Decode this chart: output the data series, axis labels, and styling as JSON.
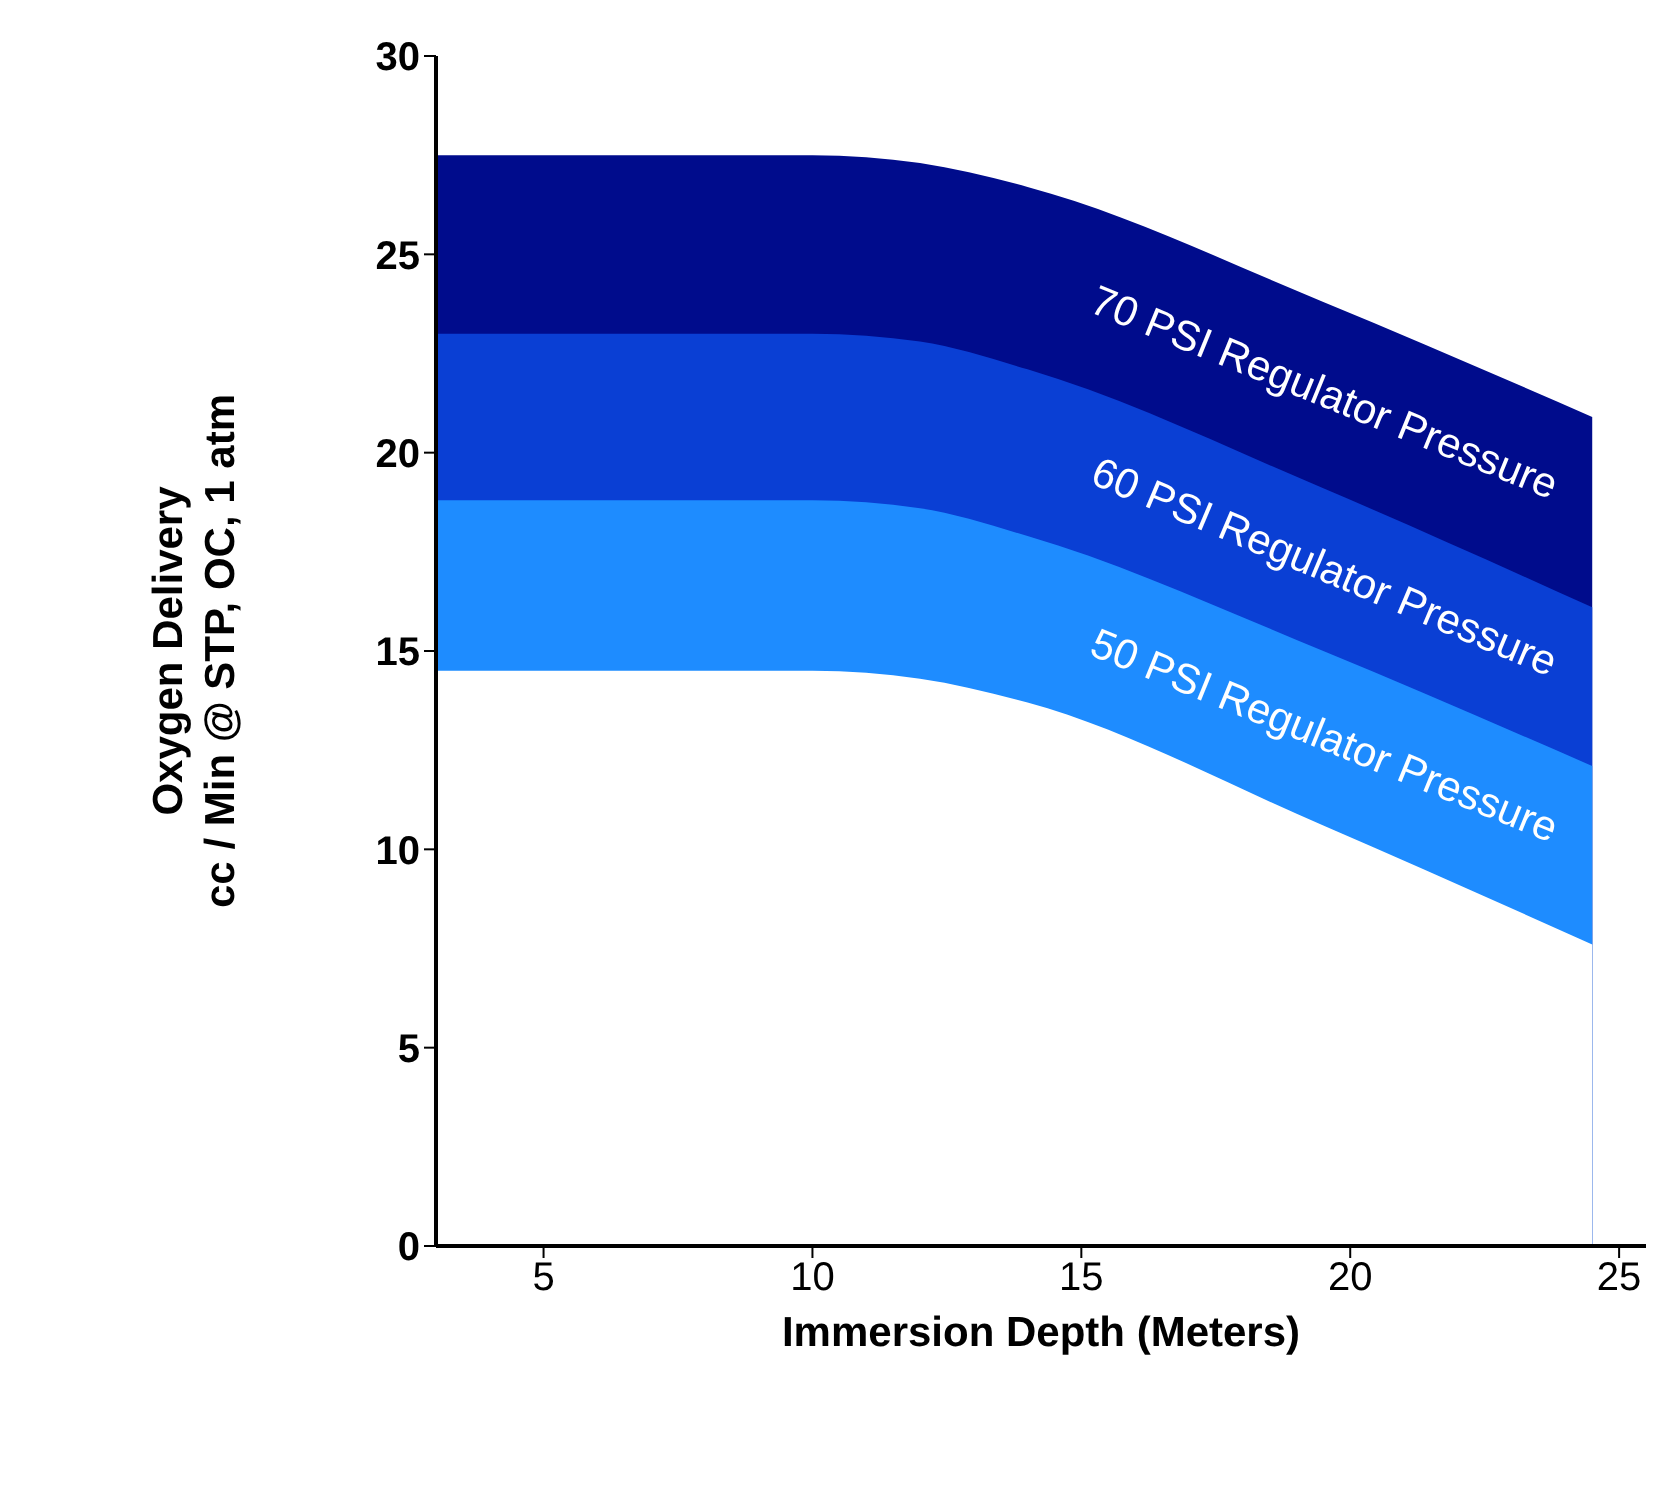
{
  "chart_data": {
    "type": "area",
    "xlabel": "Immersion Depth (Meters)",
    "ylabel": "Oxygen Delivery\ncc / Min @ STP, OC, 1 atm",
    "x": [
      3,
      10,
      12,
      14,
      19.5,
      24.5
    ],
    "series": [
      {
        "name": "70 PSI Regulator Pressure",
        "color": "#000c8c",
        "values": [
          27.5,
          27.5,
          27.3,
          26.7,
          23.8,
          20.9
        ]
      },
      {
        "name": "60 PSI Regulator Pressure",
        "color": "#0a3fd4",
        "values": [
          23.0,
          23.0,
          22.8,
          22.1,
          19.1,
          16.1
        ]
      },
      {
        "name": "50 PSI Regulator Pressure",
        "color": "#1e8cff",
        "values": [
          18.8,
          18.8,
          18.6,
          17.9,
          15.0,
          12.1
        ]
      },
      {
        "color": "#ffffff",
        "values": [
          14.5,
          14.5,
          14.3,
          13.7,
          10.6,
          7.6
        ]
      }
    ],
    "xlim": [
      3,
      25.5
    ],
    "xticks": [
      5,
      10,
      15,
      20,
      25
    ],
    "ylim": [
      0,
      30
    ],
    "yticks": [
      0,
      5,
      10,
      15,
      20,
      25,
      30
    ]
  }
}
